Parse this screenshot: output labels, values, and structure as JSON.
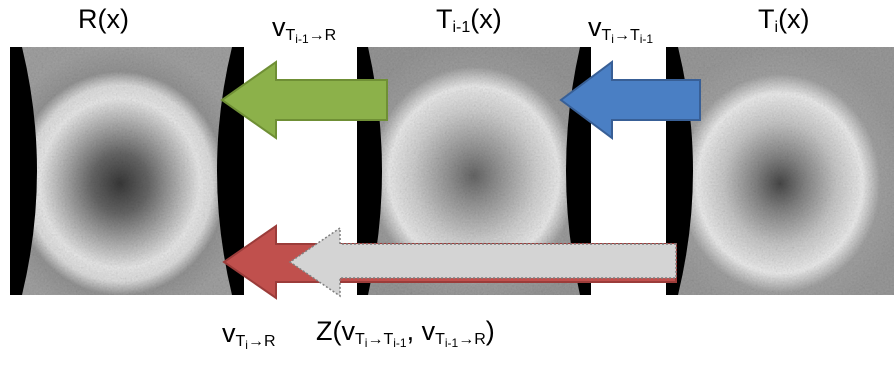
{
  "images": [
    {
      "name": "R",
      "label": "R(x)"
    },
    {
      "name": "T_i-1",
      "label": "T_{i-1}(x)"
    },
    {
      "name": "T_i",
      "label": "T_i(x)"
    }
  ],
  "labels": {
    "r_base": "R(x)",
    "ti1_base": "T",
    "ti1_sub": "i-1",
    "ti1_tail": "(x)",
    "ti_base": "T",
    "ti_sub": "i",
    "ti_tail": "(x)",
    "v": "v",
    "T": "T",
    "sub_i1": "i-1",
    "sub_i": "i",
    "arrow_R": "→R",
    "arrow_T": "→T",
    "z_open": "Z(",
    "comma": ", ",
    "z_close": ")"
  },
  "arrows": {
    "green": {
      "from": "T_i-1",
      "to": "R",
      "color": "#8cb14a"
    },
    "blue": {
      "from": "T_i",
      "to": "T_i-1",
      "color": "#4a7fc4"
    },
    "red": {
      "from": "composite",
      "to": "R",
      "color": "#c0504d"
    },
    "gray": {
      "from": "T_i",
      "to": "R",
      "color": "#d4d4d4"
    }
  }
}
